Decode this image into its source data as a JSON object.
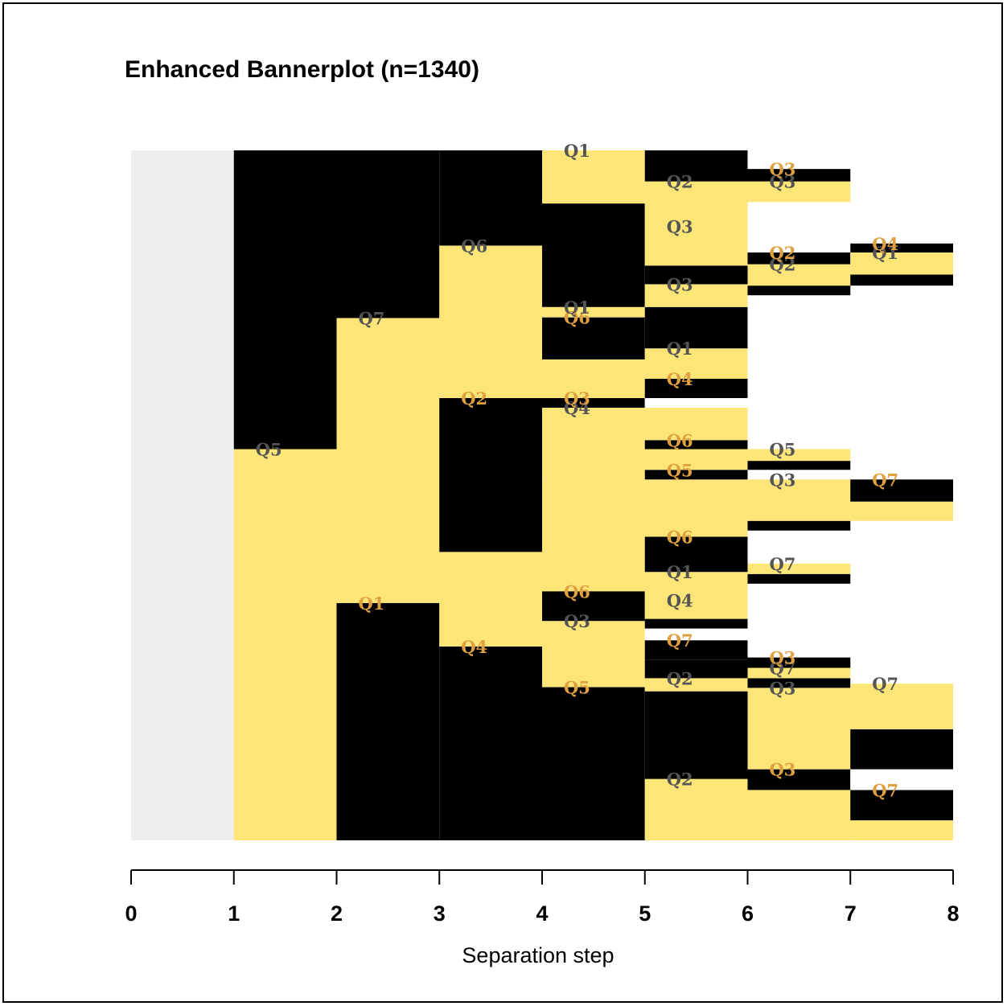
{
  "colors": {
    "black_bar": "#000000",
    "yellow_bar": "#fde577",
    "first_column": "#eeeeee",
    "label_on_black": "#e0a040",
    "label_on_yellow": "#555555"
  },
  "chart_data": {
    "type": "bannerplot",
    "title": "Enhanced Bannerplot (n=1340)",
    "xlabel": "Separation step",
    "ylabel": "",
    "xlim": [
      0,
      8
    ],
    "x_ticks": [
      "0",
      "1",
      "2",
      "3",
      "4",
      "5",
      "6",
      "7",
      "8"
    ],
    "grid": false,
    "legend": "none",
    "segments": [
      {
        "x0": 1,
        "x1": 2,
        "y0": 0.0,
        "y1": 0.567,
        "color": "yellow",
        "label": "Q5"
      },
      {
        "x0": 1,
        "x1": 2,
        "y0": 0.567,
        "y1": 1.0,
        "color": "black",
        "label": ""
      },
      {
        "x0": 2,
        "x1": 3,
        "y0": 0.0,
        "y1": 0.344,
        "color": "black",
        "label": "Q1"
      },
      {
        "x0": 2,
        "x1": 3,
        "y0": 0.344,
        "y1": 0.757,
        "color": "yellow",
        "label": "Q7"
      },
      {
        "x0": 2,
        "x1": 3,
        "y0": 0.757,
        "y1": 1.0,
        "color": "black",
        "label": ""
      },
      {
        "x0": 3,
        "x1": 4,
        "y0": 0.0,
        "y1": 0.281,
        "color": "black",
        "label": "Q4"
      },
      {
        "x0": 3,
        "x1": 4,
        "y0": 0.281,
        "y1": 0.418,
        "color": "yellow",
        "label": ""
      },
      {
        "x0": 3,
        "x1": 4,
        "y0": 0.418,
        "y1": 0.641,
        "color": "black",
        "label": "Q2"
      },
      {
        "x0": 3,
        "x1": 4,
        "y0": 0.641,
        "y1": 0.862,
        "color": "yellow",
        "label": "Q6"
      },
      {
        "x0": 3,
        "x1": 4,
        "y0": 0.862,
        "y1": 1.0,
        "color": "black",
        "label": ""
      },
      {
        "x0": 4,
        "x1": 5,
        "y0": 0.0,
        "y1": 0.222,
        "color": "black",
        "label": "Q5"
      },
      {
        "x0": 4,
        "x1": 5,
        "y0": 0.222,
        "y1": 0.318,
        "color": "yellow",
        "label": "Q3"
      },
      {
        "x0": 4,
        "x1": 5,
        "y0": 0.318,
        "y1": 0.361,
        "color": "black",
        "label": "Q6"
      },
      {
        "x0": 4,
        "x1": 5,
        "y0": 0.361,
        "y1": 0.523,
        "color": "yellow",
        "label": ""
      },
      {
        "x0": 4,
        "x1": 5,
        "y0": 0.523,
        "y1": 0.627,
        "color": "yellow",
        "label": "Q4"
      },
      {
        "x0": 4,
        "x1": 5,
        "y0": 0.627,
        "y1": 0.641,
        "color": "black",
        "label": "Q3"
      },
      {
        "x0": 4,
        "x1": 5,
        "y0": 0.641,
        "y1": 0.697,
        "color": "yellow",
        "label": ""
      },
      {
        "x0": 4,
        "x1": 5,
        "y0": 0.697,
        "y1": 0.758,
        "color": "black",
        "label": "Q6"
      },
      {
        "x0": 4,
        "x1": 5,
        "y0": 0.758,
        "y1": 0.773,
        "color": "yellow",
        "label": "Q1"
      },
      {
        "x0": 4,
        "x1": 5,
        "y0": 0.773,
        "y1": 0.923,
        "color": "black",
        "label": ""
      },
      {
        "x0": 4,
        "x1": 5,
        "y0": 0.923,
        "y1": 1.0,
        "color": "yellow",
        "label": "Q1"
      },
      {
        "x0": 5,
        "x1": 6,
        "y0": 0.0,
        "y1": 0.089,
        "color": "yellow",
        "label": "Q2"
      },
      {
        "x0": 5,
        "x1": 6,
        "y0": 0.089,
        "y1": 0.216,
        "color": "black",
        "label": ""
      },
      {
        "x0": 5,
        "x1": 6,
        "y0": 0.216,
        "y1": 0.235,
        "color": "yellow",
        "label": "Q2"
      },
      {
        "x0": 5,
        "x1": 6,
        "y0": 0.235,
        "y1": 0.262,
        "color": "black",
        "label": ""
      },
      {
        "x0": 5,
        "x1": 6,
        "y0": 0.262,
        "y1": 0.29,
        "color": "black",
        "label": "Q7"
      },
      {
        "x0": 5,
        "x1": 6,
        "y0": 0.29,
        "y1": 0.307,
        "color": "white",
        "label": ""
      },
      {
        "x0": 5,
        "x1": 6,
        "y0": 0.307,
        "y1": 0.321,
        "color": "black",
        "label": ""
      },
      {
        "x0": 5,
        "x1": 6,
        "y0": 0.321,
        "y1": 0.348,
        "color": "yellow",
        "label": "Q4"
      },
      {
        "x0": 5,
        "x1": 6,
        "y0": 0.348,
        "y1": 0.389,
        "color": "yellow",
        "label": "Q1"
      },
      {
        "x0": 5,
        "x1": 6,
        "y0": 0.389,
        "y1": 0.44,
        "color": "black",
        "label": "Q6"
      },
      {
        "x0": 5,
        "x1": 6,
        "y0": 0.44,
        "y1": 0.523,
        "color": "yellow",
        "label": ""
      },
      {
        "x0": 5,
        "x1": 6,
        "y0": 0.523,
        "y1": 0.537,
        "color": "black",
        "label": "Q5"
      },
      {
        "x0": 5,
        "x1": 6,
        "y0": 0.537,
        "y1": 0.567,
        "color": "yellow",
        "label": ""
      },
      {
        "x0": 5,
        "x1": 6,
        "y0": 0.567,
        "y1": 0.58,
        "color": "black",
        "label": "Q6"
      },
      {
        "x0": 5,
        "x1": 6,
        "y0": 0.58,
        "y1": 0.627,
        "color": "yellow",
        "label": ""
      },
      {
        "x0": 5,
        "x1": 6,
        "y0": 0.627,
        "y1": 0.641,
        "color": "white",
        "label": ""
      },
      {
        "x0": 5,
        "x1": 6,
        "y0": 0.641,
        "y1": 0.669,
        "color": "black",
        "label": "Q4"
      },
      {
        "x0": 5,
        "x1": 6,
        "y0": 0.669,
        "y1": 0.713,
        "color": "yellow",
        "label": "Q1"
      },
      {
        "x0": 5,
        "x1": 6,
        "y0": 0.713,
        "y1": 0.773,
        "color": "black",
        "label": ""
      },
      {
        "x0": 5,
        "x1": 6,
        "y0": 0.773,
        "y1": 0.806,
        "color": "yellow",
        "label": "Q3"
      },
      {
        "x0": 5,
        "x1": 6,
        "y0": 0.806,
        "y1": 0.833,
        "color": "black",
        "label": ""
      },
      {
        "x0": 5,
        "x1": 6,
        "y0": 0.833,
        "y1": 0.89,
        "color": "yellow",
        "label": "Q3"
      },
      {
        "x0": 5,
        "x1": 6,
        "y0": 0.89,
        "y1": 0.955,
        "color": "yellow",
        "label": "Q2"
      },
      {
        "x0": 5,
        "x1": 6,
        "y0": 0.955,
        "y1": 1.0,
        "color": "black",
        "label": ""
      },
      {
        "x0": 6,
        "x1": 7,
        "y0": 0.0,
        "y1": 0.073,
        "color": "yellow",
        "label": ""
      },
      {
        "x0": 6,
        "x1": 7,
        "y0": 0.073,
        "y1": 0.103,
        "color": "black",
        "label": "Q3"
      },
      {
        "x0": 6,
        "x1": 7,
        "y0": 0.103,
        "y1": 0.221,
        "color": "yellow",
        "label": "Q3"
      },
      {
        "x0": 6,
        "x1": 7,
        "y0": 0.221,
        "y1": 0.235,
        "color": "black",
        "label": ""
      },
      {
        "x0": 6,
        "x1": 7,
        "y0": 0.235,
        "y1": 0.25,
        "color": "yellow",
        "label": "Q7"
      },
      {
        "x0": 6,
        "x1": 7,
        "y0": 0.25,
        "y1": 0.265,
        "color": "black",
        "label": "Q3"
      },
      {
        "x0": 6,
        "x1": 7,
        "y0": 0.372,
        "y1": 0.386,
        "color": "black",
        "label": ""
      },
      {
        "x0": 6,
        "x1": 7,
        "y0": 0.386,
        "y1": 0.401,
        "color": "yellow",
        "label": "Q7"
      },
      {
        "x0": 6,
        "x1": 7,
        "y0": 0.449,
        "y1": 0.463,
        "color": "black",
        "label": ""
      },
      {
        "x0": 6,
        "x1": 7,
        "y0": 0.463,
        "y1": 0.523,
        "color": "yellow",
        "label": "Q3"
      },
      {
        "x0": 6,
        "x1": 7,
        "y0": 0.537,
        "y1": 0.55,
        "color": "black",
        "label": ""
      },
      {
        "x0": 6,
        "x1": 7,
        "y0": 0.55,
        "y1": 0.567,
        "color": "yellow",
        "label": "Q5"
      },
      {
        "x0": 6,
        "x1": 7,
        "y0": 0.79,
        "y1": 0.804,
        "color": "black",
        "label": ""
      },
      {
        "x0": 6,
        "x1": 7,
        "y0": 0.804,
        "y1": 0.835,
        "color": "yellow",
        "label": "Q2"
      },
      {
        "x0": 6,
        "x1": 7,
        "y0": 0.835,
        "y1": 0.852,
        "color": "black",
        "label": "Q2"
      },
      {
        "x0": 6,
        "x1": 7,
        "y0": 0.925,
        "y1": 0.955,
        "color": "yellow",
        "label": "Q3"
      },
      {
        "x0": 6,
        "x1": 7,
        "y0": 0.955,
        "y1": 0.973,
        "color": "black",
        "label": "Q3"
      },
      {
        "x0": 7,
        "x1": 8,
        "y0": 0.0,
        "y1": 0.029,
        "color": "yellow",
        "label": ""
      },
      {
        "x0": 7,
        "x1": 8,
        "y0": 0.029,
        "y1": 0.073,
        "color": "black",
        "label": "Q7"
      },
      {
        "x0": 7,
        "x1": 8,
        "y0": 0.073,
        "y1": 0.103,
        "color": "white",
        "label": ""
      },
      {
        "x0": 7,
        "x1": 8,
        "y0": 0.103,
        "y1": 0.161,
        "color": "black",
        "label": ""
      },
      {
        "x0": 7,
        "x1": 8,
        "y0": 0.161,
        "y1": 0.227,
        "color": "yellow",
        "label": "Q7"
      },
      {
        "x0": 7,
        "x1": 8,
        "y0": 0.463,
        "y1": 0.491,
        "color": "yellow",
        "label": ""
      },
      {
        "x0": 7,
        "x1": 8,
        "y0": 0.491,
        "y1": 0.523,
        "color": "black",
        "label": "Q7"
      },
      {
        "x0": 7,
        "x1": 8,
        "y0": 0.804,
        "y1": 0.82,
        "color": "black",
        "label": ""
      },
      {
        "x0": 7,
        "x1": 8,
        "y0": 0.82,
        "y1": 0.852,
        "color": "yellow",
        "label": "Q1"
      },
      {
        "x0": 7,
        "x1": 8,
        "y0": 0.852,
        "y1": 0.865,
        "color": "black",
        "label": "Q4"
      }
    ]
  }
}
